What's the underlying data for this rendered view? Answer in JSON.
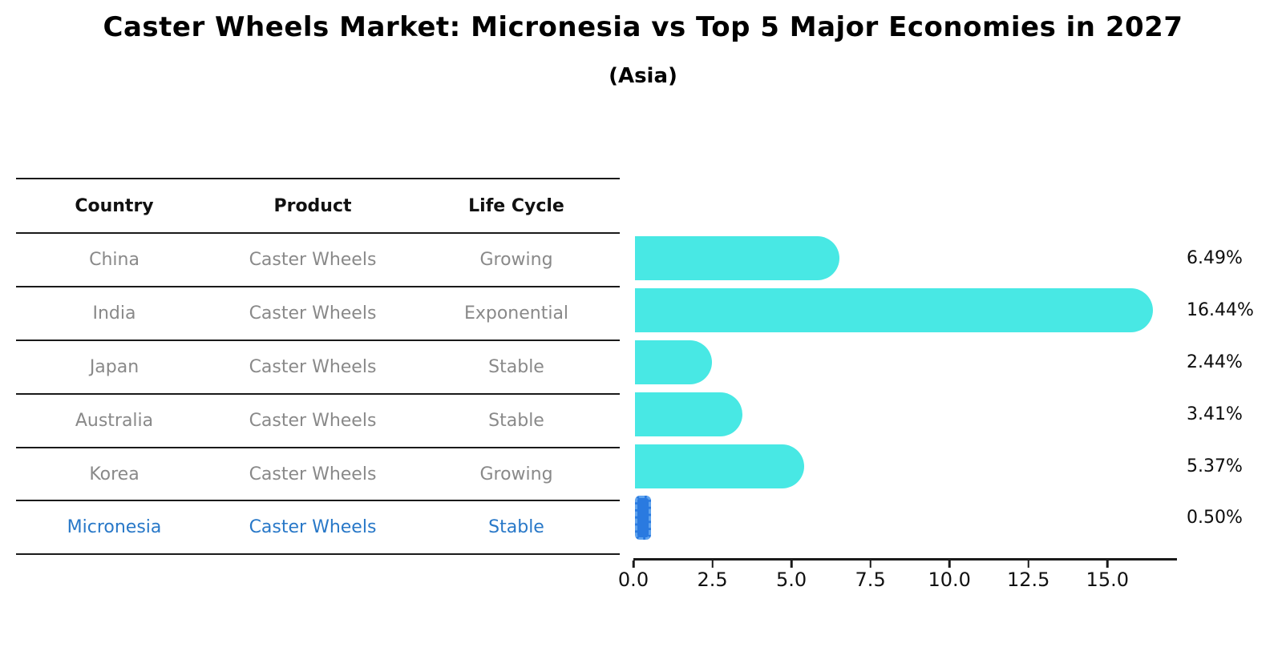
{
  "header": {
    "title": "Caster Wheels Market: Micronesia vs Top 5 Major Economies in 2027",
    "subtitle": "(Asia)"
  },
  "table": {
    "headers": [
      "Country",
      "Product",
      "Life Cycle"
    ],
    "rows": [
      {
        "country": "China",
        "product": "Caster Wheels",
        "life_cycle": "Growing",
        "highlighted": false
      },
      {
        "country": "India",
        "product": "Caster Wheels",
        "life_cycle": "Exponential",
        "highlighted": false
      },
      {
        "country": "Japan",
        "product": "Caster Wheels",
        "life_cycle": "Stable",
        "highlighted": false
      },
      {
        "country": "Australia",
        "product": "Caster Wheels",
        "life_cycle": "Stable",
        "highlighted": false
      },
      {
        "country": "Korea",
        "product": "Caster Wheels",
        "life_cycle": "Growing",
        "highlighted": false
      },
      {
        "country": "Micronesia",
        "product": "Caster Wheels",
        "life_cycle": "Stable",
        "highlighted": true
      }
    ]
  },
  "chart_data": {
    "type": "bar",
    "orientation": "horizontal",
    "title": "Caster Wheels Market: Micronesia vs Top 5 Major Economies in 2027",
    "subtitle": "(Asia)",
    "categories": [
      "China",
      "India",
      "Japan",
      "Australia",
      "Korea",
      "Micronesia"
    ],
    "values": [
      6.49,
      16.44,
      2.44,
      3.41,
      5.37,
      0.5
    ],
    "value_labels": [
      "6.49%",
      "16.44%",
      "2.44%",
      "3.41%",
      "5.37%",
      "0.50%"
    ],
    "xlabel": "",
    "ylabel": "",
    "xlim": [
      0,
      17.2
    ],
    "xticks": [
      0,
      2.5,
      5,
      7.5,
      10,
      12.5,
      15
    ],
    "xticklabels": [
      "0.0",
      "2.5",
      "5.0",
      "7.5",
      "10.0",
      "12.5",
      "15.0"
    ],
    "grid": false,
    "legend": false,
    "highlight_index": 5
  },
  "colors": {
    "bar_color": "#48e8e4",
    "highlight_color": "#2a7ae0",
    "highlight_dash": "#5fa3ee",
    "highlight_text": "#2878c8",
    "muted_text": "#898989",
    "line": "#1a1a1a"
  }
}
